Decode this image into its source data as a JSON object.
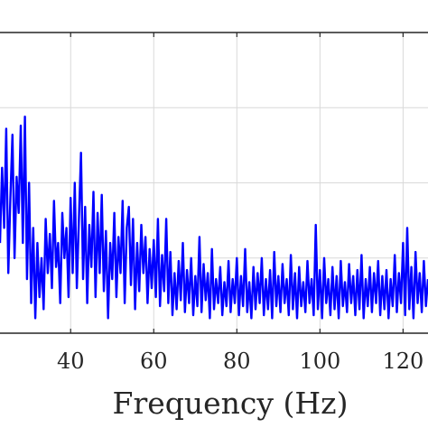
{
  "chart_data": {
    "type": "line",
    "title": "",
    "xlabel": "Frequency (Hz)",
    "ylabel": "",
    "xlim": [
      23,
      126
    ],
    "ylim": [
      0,
      1
    ],
    "x_ticks": [
      40,
      60,
      80,
      100,
      120
    ],
    "x_tick_labels": [
      "40",
      "60",
      "80",
      "100",
      "120"
    ],
    "grid": true,
    "series": [
      {
        "color": "#0000ff",
        "points": [
          [
            23,
            0.3
          ],
          [
            23.5,
            0.55
          ],
          [
            24,
            0.35
          ],
          [
            24.5,
            0.68
          ],
          [
            25,
            0.2
          ],
          [
            25.5,
            0.45
          ],
          [
            26,
            0.66
          ],
          [
            26.5,
            0.25
          ],
          [
            27,
            0.52
          ],
          [
            27.5,
            0.4
          ],
          [
            28,
            0.69
          ],
          [
            28.5,
            0.3
          ],
          [
            29,
            0.72
          ],
          [
            29.5,
            0.18
          ],
          [
            30,
            0.5
          ],
          [
            30.5,
            0.1
          ],
          [
            31,
            0.35
          ],
          [
            31.5,
            0.05
          ],
          [
            32,
            0.3
          ],
          [
            32.5,
            0.12
          ],
          [
            33,
            0.25
          ],
          [
            33.5,
            0.08
          ],
          [
            34,
            0.38
          ],
          [
            34.5,
            0.2
          ],
          [
            35,
            0.33
          ],
          [
            35.5,
            0.15
          ],
          [
            36,
            0.44
          ],
          [
            36.5,
            0.22
          ],
          [
            37,
            0.3
          ],
          [
            37.5,
            0.1
          ],
          [
            38,
            0.4
          ],
          [
            38.5,
            0.25
          ],
          [
            39,
            0.35
          ],
          [
            39.5,
            0.12
          ],
          [
            40,
            0.45
          ],
          [
            40.5,
            0.2
          ],
          [
            41,
            0.5
          ],
          [
            41.5,
            0.15
          ],
          [
            42,
            0.38
          ],
          [
            42.5,
            0.6
          ],
          [
            43,
            0.18
          ],
          [
            43.5,
            0.42
          ],
          [
            44,
            0.1
          ],
          [
            44.5,
            0.36
          ],
          [
            45,
            0.22
          ],
          [
            45.5,
            0.47
          ],
          [
            46,
            0.12
          ],
          [
            46.5,
            0.4
          ],
          [
            47,
            0.2
          ],
          [
            47.5,
            0.46
          ],
          [
            48,
            0.14
          ],
          [
            48.5,
            0.34
          ],
          [
            49,
            0.05
          ],
          [
            49.5,
            0.3
          ],
          [
            50,
            0.18
          ],
          [
            50.5,
            0.4
          ],
          [
            51,
            0.12
          ],
          [
            51.5,
            0.32
          ],
          [
            52,
            0.2
          ],
          [
            52.5,
            0.44
          ],
          [
            53,
            0.1
          ],
          [
            53.5,
            0.35
          ],
          [
            54,
            0.42
          ],
          [
            54.5,
            0.16
          ],
          [
            55,
            0.38
          ],
          [
            55.5,
            0.08
          ],
          [
            56,
            0.3
          ],
          [
            56.5,
            0.14
          ],
          [
            57,
            0.36
          ],
          [
            57.5,
            0.2
          ],
          [
            58,
            0.32
          ],
          [
            58.5,
            0.1
          ],
          [
            59,
            0.28
          ],
          [
            59.5,
            0.15
          ],
          [
            60,
            0.31
          ],
          [
            60.5,
            0.12
          ],
          [
            61,
            0.38
          ],
          [
            61.5,
            0.09
          ],
          [
            62,
            0.26
          ],
          [
            62.5,
            0.14
          ],
          [
            63,
            0.38
          ],
          [
            63.5,
            0.1
          ],
          [
            64,
            0.27
          ],
          [
            64.5,
            0.06
          ],
          [
            65,
            0.2
          ],
          [
            65.5,
            0.08
          ],
          [
            66,
            0.24
          ],
          [
            66.5,
            0.11
          ],
          [
            67,
            0.3
          ],
          [
            67.5,
            0.07
          ],
          [
            68,
            0.21
          ],
          [
            68.5,
            0.1
          ],
          [
            69,
            0.25
          ],
          [
            69.5,
            0.06
          ],
          [
            70,
            0.19
          ],
          [
            70.5,
            0.09
          ],
          [
            71,
            0.32
          ],
          [
            71.5,
            0.07
          ],
          [
            72,
            0.23
          ],
          [
            72.5,
            0.11
          ],
          [
            73,
            0.2
          ],
          [
            73.5,
            0.05
          ],
          [
            74,
            0.28
          ],
          [
            74.5,
            0.08
          ],
          [
            75,
            0.18
          ],
          [
            75.5,
            0.1
          ],
          [
            76,
            0.22
          ],
          [
            76.5,
            0.06
          ],
          [
            77,
            0.17
          ],
          [
            77.5,
            0.09
          ],
          [
            78,
            0.24
          ],
          [
            78.5,
            0.07
          ],
          [
            79,
            0.18
          ],
          [
            79.5,
            0.1
          ],
          [
            80,
            0.25
          ],
          [
            80.5,
            0.06
          ],
          [
            81,
            0.19
          ],
          [
            81.5,
            0.09
          ],
          [
            82,
            0.28
          ],
          [
            82.5,
            0.07
          ],
          [
            83,
            0.17
          ],
          [
            83.5,
            0.05
          ],
          [
            84,
            0.22
          ],
          [
            84.5,
            0.08
          ],
          [
            85,
            0.2
          ],
          [
            85.5,
            0.1
          ],
          [
            86,
            0.25
          ],
          [
            86.5,
            0.06
          ],
          [
            87,
            0.18
          ],
          [
            87.5,
            0.08
          ],
          [
            88,
            0.21
          ],
          [
            88.5,
            0.05
          ],
          [
            89,
            0.27
          ],
          [
            89.5,
            0.09
          ],
          [
            90,
            0.19
          ],
          [
            90.5,
            0.07
          ],
          [
            91,
            0.23
          ],
          [
            91.5,
            0.1
          ],
          [
            92,
            0.18
          ],
          [
            92.5,
            0.06
          ],
          [
            93,
            0.26
          ],
          [
            93.5,
            0.08
          ],
          [
            94,
            0.2
          ],
          [
            94.5,
            0.05
          ],
          [
            95,
            0.22
          ],
          [
            95.5,
            0.09
          ],
          [
            96,
            0.17
          ],
          [
            96.5,
            0.07
          ],
          [
            97,
            0.24
          ],
          [
            97.5,
            0.1
          ],
          [
            98,
            0.18
          ],
          [
            98.5,
            0.06
          ],
          [
            99,
            0.36
          ],
          [
            99.5,
            0.08
          ],
          [
            100,
            0.21
          ],
          [
            100.5,
            0.05
          ],
          [
            101,
            0.25
          ],
          [
            101.5,
            0.1
          ],
          [
            102,
            0.18
          ],
          [
            102.5,
            0.06
          ],
          [
            103,
            0.22
          ],
          [
            103.5,
            0.08
          ],
          [
            104,
            0.19
          ],
          [
            104.5,
            0.05
          ],
          [
            105,
            0.24
          ],
          [
            105.5,
            0.09
          ],
          [
            106,
            0.17
          ],
          [
            106.5,
            0.07
          ],
          [
            107,
            0.23
          ],
          [
            107.5,
            0.1
          ],
          [
            108,
            0.19
          ],
          [
            108.5,
            0.06
          ],
          [
            109,
            0.21
          ],
          [
            109.5,
            0.08
          ],
          [
            110,
            0.26
          ],
          [
            110.5,
            0.05
          ],
          [
            111,
            0.18
          ],
          [
            111.5,
            0.09
          ],
          [
            112,
            0.22
          ],
          [
            112.5,
            0.07
          ],
          [
            113,
            0.2
          ],
          [
            113.5,
            0.1
          ],
          [
            114,
            0.24
          ],
          [
            114.5,
            0.06
          ],
          [
            115,
            0.19
          ],
          [
            115.5,
            0.08
          ],
          [
            116,
            0.21
          ],
          [
            116.5,
            0.05
          ],
          [
            117,
            0.18
          ],
          [
            117.5,
            0.09
          ],
          [
            118,
            0.26
          ],
          [
            118.5,
            0.07
          ],
          [
            119,
            0.2
          ],
          [
            119.5,
            0.1
          ],
          [
            120,
            0.3
          ],
          [
            120.5,
            0.06
          ],
          [
            121,
            0.35
          ],
          [
            121.5,
            0.08
          ],
          [
            122,
            0.22
          ],
          [
            122.5,
            0.05
          ],
          [
            123,
            0.27
          ],
          [
            123.5,
            0.1
          ],
          [
            124,
            0.2
          ],
          [
            124.5,
            0.07
          ],
          [
            125,
            0.24
          ],
          [
            125.5,
            0.09
          ],
          [
            126,
            0.18
          ]
        ]
      }
    ]
  }
}
